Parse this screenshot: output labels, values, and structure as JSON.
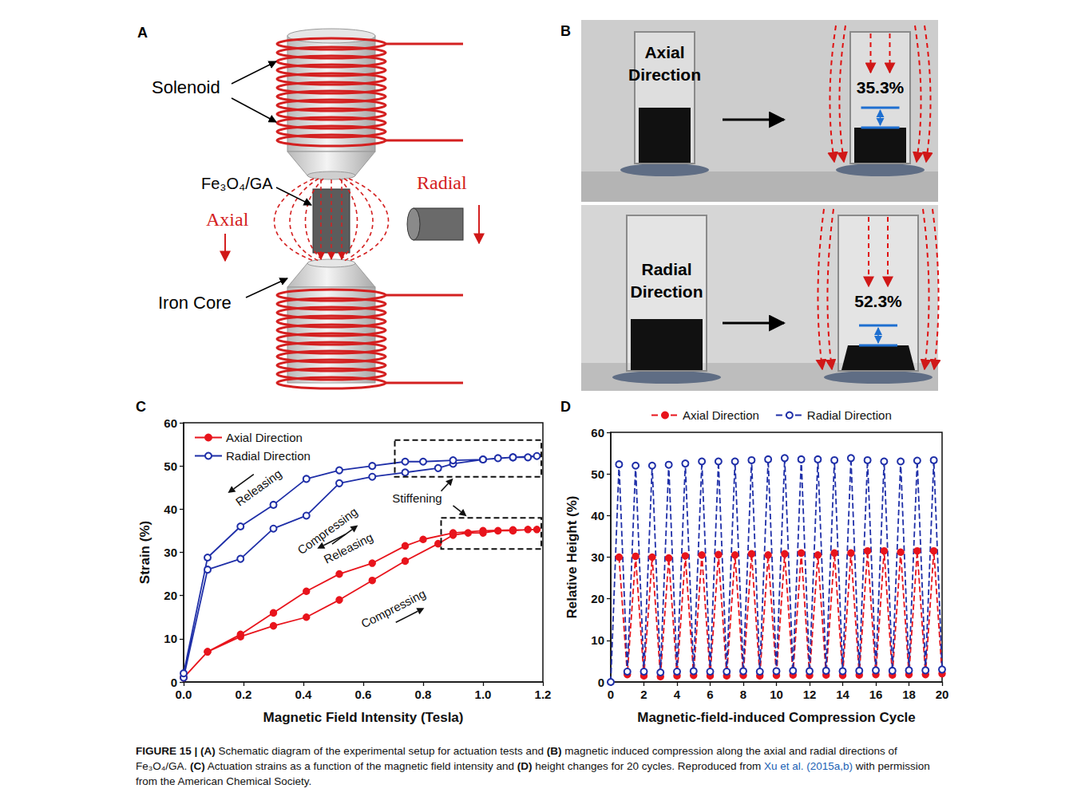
{
  "panel_a": {
    "letter": "A",
    "labels": {
      "solenoid": "Solenoid",
      "sample": "Fe₃O₄/GA",
      "axial": "Axial",
      "radial": "Radial",
      "iron_core": "Iron Core"
    }
  },
  "panel_b": {
    "letter": "B",
    "rows": [
      {
        "label": "Axial Direction",
        "strain": "35.3%"
      },
      {
        "label": "Radial Direction",
        "strain": "52.3%"
      }
    ]
  },
  "chart_panels": [
    "C",
    "D"
  ],
  "chart_data": [
    {
      "type": "line",
      "x_label": "Magnetic Field Intensity (Tesla)",
      "y_label": "Strain (%)",
      "xlim": [
        0,
        1.2
      ],
      "xticks": [
        {
          "value": 0,
          "label": "0.0"
        },
        0.2,
        0.4,
        0.6,
        0.8,
        {
          "value": 1,
          "label": "1.0"
        },
        1.2
      ],
      "ylim": [
        0,
        60
      ],
      "yticks": [
        0,
        10,
        20,
        30,
        40,
        50,
        60
      ],
      "grid": false,
      "legend": "upper left",
      "annotations": [
        "Releasing",
        "Compressing",
        "Releasing",
        "Compressing",
        "Stiffening"
      ],
      "series": [
        {
          "name": "Axial Direction",
          "color": "#e8141c",
          "marker": "filled_circle",
          "line_style": "solid",
          "x": [
            0,
            0.08,
            0.19,
            0.3,
            0.41,
            0.52,
            0.63,
            0.74,
            0.85,
            0.9,
            0.95,
            1.0,
            1.05,
            1.1,
            1.15,
            1.18,
            1.1,
            1.0,
            0.9,
            0.8,
            0.74,
            0.63,
            0.52,
            0.41,
            0.3,
            0.19,
            0.08,
            0
          ],
          "values": [
            1,
            7,
            10.5,
            13,
            15,
            19,
            23.5,
            28,
            32,
            34,
            34.5,
            34.5,
            35,
            35,
            35.3,
            35.3,
            35.2,
            35,
            34.5,
            33,
            31.5,
            27.5,
            25,
            21,
            16,
            11,
            7,
            1
          ]
        },
        {
          "name": "Radial Direction",
          "color": "#1f2fa8",
          "marker": "open_circle",
          "line_style": "solid",
          "x": [
            0,
            0.08,
            0.19,
            0.3,
            0.41,
            0.52,
            0.63,
            0.74,
            0.85,
            0.9,
            1.0,
            1.05,
            1.1,
            1.15,
            1.18,
            1.1,
            1.0,
            0.9,
            0.8,
            0.74,
            0.63,
            0.52,
            0.41,
            0.3,
            0.19,
            0.08,
            0
          ],
          "values": [
            1,
            26,
            28.5,
            35.5,
            38.5,
            46,
            47.5,
            48.5,
            49.5,
            50.5,
            51.5,
            51.8,
            52,
            52,
            52.3,
            52,
            51.5,
            51.3,
            51,
            51,
            50,
            49,
            47,
            41,
            36,
            28.8,
            2
          ]
        }
      ]
    },
    {
      "type": "line",
      "x_label": "Magnetic-field-induced Compression Cycle",
      "y_label": "Relative Height (%)",
      "xlim": [
        0,
        20
      ],
      "xticks": [
        0,
        2,
        4,
        6,
        8,
        10,
        12,
        14,
        16,
        18,
        20
      ],
      "ylim": [
        0,
        60
      ],
      "yticks": [
        0,
        10,
        20,
        30,
        40,
        50,
        60
      ],
      "grid": false,
      "legend": "top",
      "series": [
        {
          "name": "Axial Direction",
          "color": "#e8141c",
          "marker": "filled_circle",
          "line_style": "dashed",
          "x": [
            0,
            0.5,
            1,
            1.5,
            2,
            2.5,
            3,
            3.5,
            4,
            4.5,
            5,
            5.5,
            6,
            6.5,
            7,
            7.5,
            8,
            8.5,
            9,
            9.5,
            10,
            10.5,
            11,
            11.5,
            12,
            12.5,
            13,
            13.5,
            14,
            14.5,
            15,
            15.5,
            16,
            16.5,
            17,
            17.5,
            18,
            18.5,
            19,
            19.5,
            20
          ],
          "values": [
            null,
            30,
            1.8,
            30.2,
            1.5,
            30,
            1.3,
            29.8,
            1.5,
            30.3,
            1.6,
            30.5,
            1.5,
            30.6,
            1.5,
            30.5,
            1.6,
            30.8,
            1.5,
            30.5,
            1.6,
            30.8,
            1.7,
            31,
            1.6,
            30.5,
            1.7,
            31,
            1.6,
            31,
            1.7,
            31.5,
            1.8,
            31.5,
            1.7,
            31.2,
            1.8,
            31.5,
            1.8,
            31.5,
            2.0
          ]
        },
        {
          "name": "Radial Direction",
          "color": "#1f2fa8",
          "marker": "open_circle",
          "line_style": "dashed",
          "x": [
            0,
            0.5,
            1,
            1.5,
            2,
            2.5,
            3,
            3.5,
            4,
            4.5,
            5,
            5.5,
            6,
            6.5,
            7,
            7.5,
            8,
            8.5,
            9,
            9.5,
            10,
            10.5,
            11,
            11.5,
            12,
            12.5,
            13,
            13.5,
            14,
            14.5,
            15,
            15.5,
            16,
            16.5,
            17,
            17.5,
            18,
            18.5,
            19,
            19.5,
            20
          ],
          "values": [
            0,
            52.3,
            2.5,
            52,
            2.5,
            52,
            2.3,
            52.2,
            2.5,
            52.5,
            2.6,
            53,
            2.5,
            53,
            2.5,
            53,
            2.6,
            53.3,
            2.5,
            53.5,
            2.6,
            53.8,
            2.7,
            53.5,
            2.6,
            53.5,
            2.7,
            53.3,
            2.6,
            53.8,
            2.7,
            53.3,
            2.8,
            53,
            2.7,
            53,
            2.8,
            53.2,
            2.8,
            53.3,
            3.0
          ]
        }
      ]
    }
  ],
  "caption": [
    {
      "text": "FIGURE 15 | ",
      "bold": true
    },
    {
      "text": "(A)",
      "bold": true
    },
    {
      "text": " Schematic diagram of the experimental setup for actuation tests and "
    },
    {
      "text": "(B)",
      "bold": true
    },
    {
      "text": " magnetic induced compression along the axial and radial directions of Fe₃O₄/GA. "
    },
    {
      "text": "(C)",
      "bold": true
    },
    {
      "text": " Actuation strains as a function of the magnetic field intensity and "
    },
    {
      "text": "(D)",
      "bold": true
    },
    {
      "text": " height changes for 20 cycles. Reproduced from "
    },
    {
      "text": "Xu et al. (2015a,b)",
      "link": true
    },
    {
      "text": " with permission from the American Chemical Society."
    }
  ]
}
